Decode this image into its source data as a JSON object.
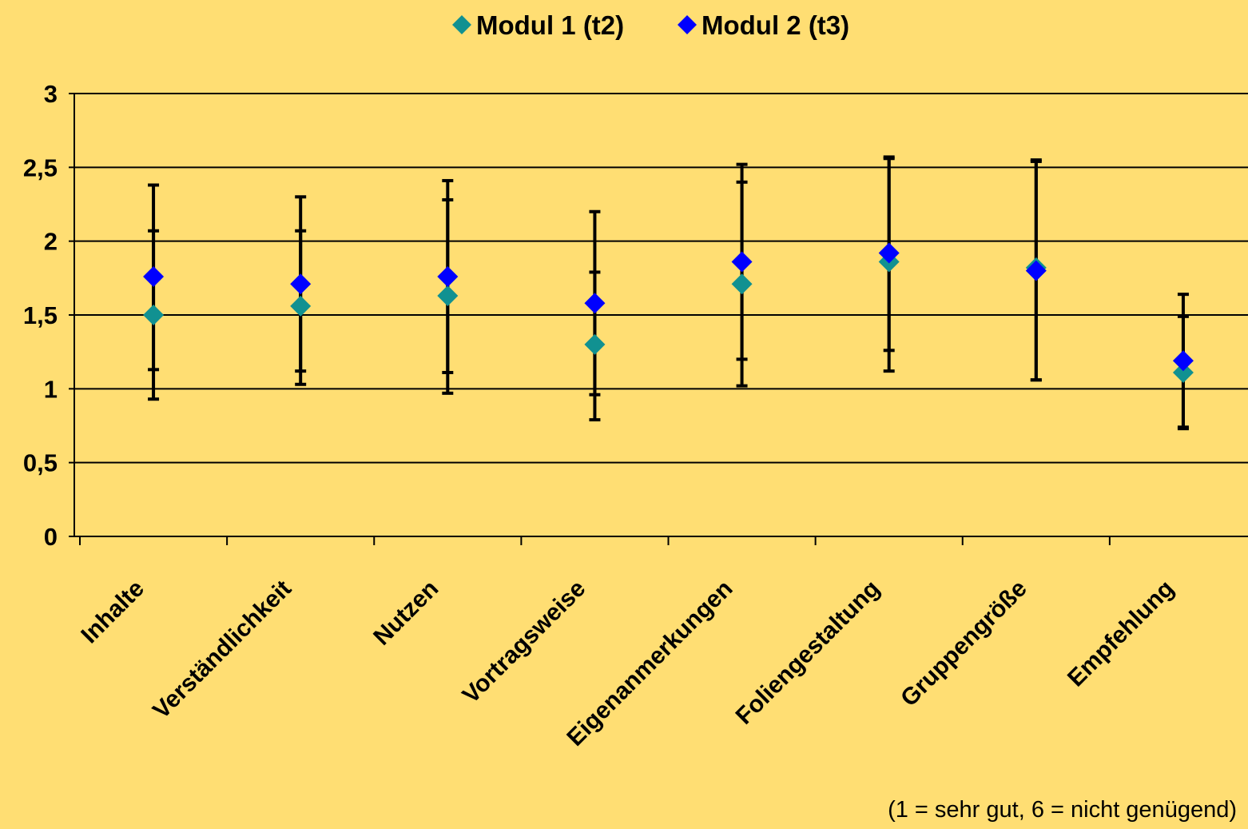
{
  "chart_data": {
    "type": "scatter",
    "title": "",
    "xlabel": "",
    "ylabel": "",
    "ylim": [
      0,
      3
    ],
    "yticks": [
      {
        "value": 0,
        "label": "0"
      },
      {
        "value": 0.5,
        "label": "0,5"
      },
      {
        "value": 1,
        "label": "1"
      },
      {
        "value": 1.5,
        "label": "1,5"
      },
      {
        "value": 2,
        "label": "2"
      },
      {
        "value": 2.5,
        "label": "2,5"
      },
      {
        "value": 3,
        "label": "3"
      }
    ],
    "grid": true,
    "legend_position": "top-center",
    "categories": [
      "Inhalte",
      "Verständlichkeit",
      "Nutzen",
      "Vortragsweise",
      "Eigenanmerkungen",
      "Foliengestaltung",
      "Gruppengröße",
      "Empfehlung"
    ],
    "series": [
      {
        "name": "Modul 1 (t2)",
        "color": "#119191",
        "marker": "diamond",
        "values": [
          1.5,
          1.56,
          1.63,
          1.3,
          1.71,
          1.86,
          1.82,
          1.11
        ],
        "error_low": [
          1.13,
          1.12,
          1.11,
          0.79,
          1.02,
          1.26,
          1.06,
          0.73
        ],
        "error_high": [
          2.07,
          2.07,
          2.28,
          1.79,
          2.4,
          2.57,
          2.55,
          1.49
        ]
      },
      {
        "name": "Modul 2 (t3)",
        "color": "#0000FF",
        "marker": "diamond",
        "values": [
          1.76,
          1.71,
          1.76,
          1.58,
          1.86,
          1.92,
          1.8,
          1.19
        ],
        "error_low": [
          0.93,
          1.03,
          0.97,
          0.96,
          1.2,
          1.12,
          1.06,
          0.74
        ],
        "error_high": [
          2.38,
          2.3,
          2.41,
          2.2,
          2.52,
          2.56,
          2.54,
          1.64
        ]
      }
    ],
    "error_bar_color": "#000000",
    "note": "(1 = sehr gut, 6 = nicht genügend)"
  }
}
